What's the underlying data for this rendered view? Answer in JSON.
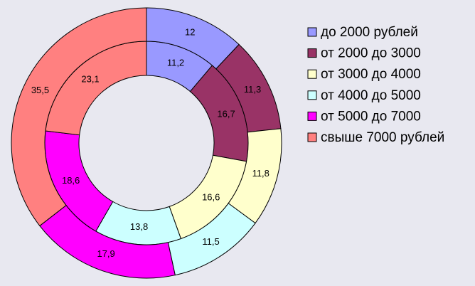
{
  "chart_data": {
    "type": "doughnut",
    "categories": [
      "до 2000 рублей",
      "от 2000 до 3000",
      "от 3000 до 4000",
      "от 4000 до 5000",
      "от 5000 до 7000",
      "свыше 7000 рублей"
    ],
    "colors": [
      "#9999ff",
      "#993366",
      "#ffffcc",
      "#ccffff",
      "#ff00ff",
      "#ff8080"
    ],
    "series": [
      {
        "values": [
          11.2,
          16.7,
          16.6,
          13.8,
          18.6,
          23.1
        ],
        "value_labels": [
          "11,2",
          "16,7",
          "16,6",
          "13,8",
          "18,6",
          "23,1"
        ]
      },
      {
        "values": [
          12,
          11.3,
          11.8,
          11.5,
          17.9,
          35.5
        ],
        "value_labels": [
          "12",
          "11,3",
          "11,8",
          "11,5",
          "17,9",
          "35,5"
        ]
      }
    ],
    "legend": "right"
  }
}
